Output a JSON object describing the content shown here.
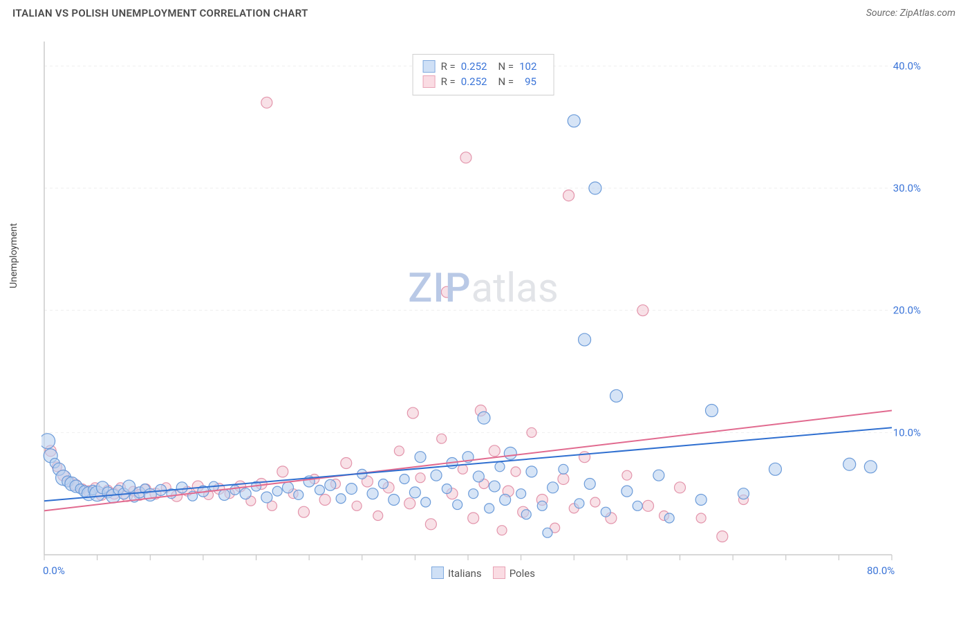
{
  "header": {
    "title": "ITALIAN VS POLISH UNEMPLOYMENT CORRELATION CHART",
    "source": "Source: ZipAtlas.com"
  },
  "chart": {
    "type": "scatter",
    "ylabel": "Unemployment",
    "watermark": {
      "part1": "ZIP",
      "part2": "atlas"
    },
    "xlim": [
      0,
      80
    ],
    "ylim": [
      0,
      42
    ],
    "xtick_minor_step": 5,
    "ytick_values": [
      10,
      20,
      30,
      40
    ],
    "ytick_labels": [
      "10.0%",
      "20.0%",
      "30.0%",
      "40.0%"
    ],
    "x_axis_start_label": "0.0%",
    "x_axis_end_label": "80.0%",
    "grid_color": "#eeeeee",
    "axis_color": "#cccccc",
    "tick_color": "#bdbdbd",
    "background_color": "#ffffff",
    "value_color": "#3a74d8",
    "series_a": {
      "name": "Italians",
      "marker_fill": "#b8d0ef",
      "marker_stroke": "#6b9bd9",
      "marker_fill_opacity": 0.58,
      "swatch_fill": "#cfe0f6",
      "swatch_border": "#7fa9de",
      "line_color": "#2f6fd0",
      "line_width": 2,
      "trend": {
        "x1": 0,
        "y1": 4.4,
        "x2": 80,
        "y2": 10.4
      },
      "stats": {
        "R": "0.252",
        "N": "102"
      },
      "points": [
        {
          "x": 0.3,
          "y": 9.3,
          "r": 11
        },
        {
          "x": 0.6,
          "y": 8.1,
          "r": 10
        },
        {
          "x": 1.0,
          "y": 7.5,
          "r": 7
        },
        {
          "x": 1.4,
          "y": 7.0,
          "r": 9
        },
        {
          "x": 1.8,
          "y": 6.3,
          "r": 11
        },
        {
          "x": 2.2,
          "y": 6.0,
          "r": 8
        },
        {
          "x": 2.6,
          "y": 5.8,
          "r": 10
        },
        {
          "x": 3.0,
          "y": 5.6,
          "r": 9
        },
        {
          "x": 3.4,
          "y": 5.4,
          "r": 7
        },
        {
          "x": 3.8,
          "y": 5.2,
          "r": 8
        },
        {
          "x": 4.2,
          "y": 5.0,
          "r": 10
        },
        {
          "x": 4.6,
          "y": 5.3,
          "r": 7
        },
        {
          "x": 5.0,
          "y": 5.0,
          "r": 11
        },
        {
          "x": 5.5,
          "y": 5.5,
          "r": 9
        },
        {
          "x": 6.0,
          "y": 5.1,
          "r": 8
        },
        {
          "x": 6.5,
          "y": 4.8,
          "r": 10
        },
        {
          "x": 7.0,
          "y": 5.3,
          "r": 7
        },
        {
          "x": 7.5,
          "y": 5.0,
          "r": 8
        },
        {
          "x": 8.0,
          "y": 5.6,
          "r": 9
        },
        {
          "x": 8.5,
          "y": 4.7,
          "r": 7
        },
        {
          "x": 9.0,
          "y": 5.1,
          "r": 8
        },
        {
          "x": 9.5,
          "y": 5.4,
          "r": 7
        },
        {
          "x": 10,
          "y": 4.9,
          "r": 9
        },
        {
          "x": 11,
          "y": 5.3,
          "r": 8
        },
        {
          "x": 12,
          "y": 5.0,
          "r": 7
        },
        {
          "x": 13,
          "y": 5.5,
          "r": 8
        },
        {
          "x": 14,
          "y": 4.8,
          "r": 7
        },
        {
          "x": 15,
          "y": 5.2,
          "r": 8
        },
        {
          "x": 16,
          "y": 5.6,
          "r": 7
        },
        {
          "x": 17,
          "y": 4.9,
          "r": 8
        },
        {
          "x": 18,
          "y": 5.3,
          "r": 7
        },
        {
          "x": 19,
          "y": 5.0,
          "r": 8
        },
        {
          "x": 20,
          "y": 5.6,
          "r": 7
        },
        {
          "x": 21,
          "y": 4.7,
          "r": 8
        },
        {
          "x": 22,
          "y": 5.2,
          "r": 7
        },
        {
          "x": 23,
          "y": 5.5,
          "r": 8
        },
        {
          "x": 24,
          "y": 4.9,
          "r": 7
        },
        {
          "x": 25,
          "y": 6.0,
          "r": 8
        },
        {
          "x": 26,
          "y": 5.3,
          "r": 7
        },
        {
          "x": 27,
          "y": 5.7,
          "r": 8
        },
        {
          "x": 28,
          "y": 4.6,
          "r": 7
        },
        {
          "x": 29,
          "y": 5.4,
          "r": 8
        },
        {
          "x": 30,
          "y": 6.6,
          "r": 7
        },
        {
          "x": 31,
          "y": 5.0,
          "r": 8
        },
        {
          "x": 32,
          "y": 5.8,
          "r": 7
        },
        {
          "x": 33,
          "y": 4.5,
          "r": 8
        },
        {
          "x": 34,
          "y": 6.2,
          "r": 7
        },
        {
          "x": 35,
          "y": 5.1,
          "r": 8
        },
        {
          "x": 35.5,
          "y": 8.0,
          "r": 8
        },
        {
          "x": 36,
          "y": 4.3,
          "r": 7
        },
        {
          "x": 37,
          "y": 6.5,
          "r": 8
        },
        {
          "x": 38,
          "y": 5.4,
          "r": 7
        },
        {
          "x": 38.5,
          "y": 7.5,
          "r": 8
        },
        {
          "x": 39,
          "y": 4.1,
          "r": 7
        },
        {
          "x": 40,
          "y": 8.0,
          "r": 8
        },
        {
          "x": 40.5,
          "y": 5.0,
          "r": 7
        },
        {
          "x": 41,
          "y": 6.4,
          "r": 8
        },
        {
          "x": 41.5,
          "y": 11.2,
          "r": 9
        },
        {
          "x": 42,
          "y": 3.8,
          "r": 7
        },
        {
          "x": 42.5,
          "y": 5.6,
          "r": 8
        },
        {
          "x": 43,
          "y": 7.2,
          "r": 7
        },
        {
          "x": 43.5,
          "y": 4.5,
          "r": 8
        },
        {
          "x": 44,
          "y": 8.3,
          "r": 9
        },
        {
          "x": 45,
          "y": 5.0,
          "r": 7
        },
        {
          "x": 45.5,
          "y": 3.3,
          "r": 7
        },
        {
          "x": 46,
          "y": 6.8,
          "r": 8
        },
        {
          "x": 47,
          "y": 4.0,
          "r": 7
        },
        {
          "x": 47.5,
          "y": 1.8,
          "r": 7
        },
        {
          "x": 48,
          "y": 5.5,
          "r": 8
        },
        {
          "x": 49,
          "y": 7.0,
          "r": 7
        },
        {
          "x": 50,
          "y": 35.5,
          "r": 9
        },
        {
          "x": 50.5,
          "y": 4.2,
          "r": 7
        },
        {
          "x": 51,
          "y": 17.6,
          "r": 9
        },
        {
          "x": 51.5,
          "y": 5.8,
          "r": 8
        },
        {
          "x": 52,
          "y": 30.0,
          "r": 9
        },
        {
          "x": 53,
          "y": 3.5,
          "r": 7
        },
        {
          "x": 54,
          "y": 13.0,
          "r": 9
        },
        {
          "x": 55,
          "y": 5.2,
          "r": 8
        },
        {
          "x": 56,
          "y": 4.0,
          "r": 7
        },
        {
          "x": 58,
          "y": 6.5,
          "r": 8
        },
        {
          "x": 59,
          "y": 3.0,
          "r": 7
        },
        {
          "x": 62,
          "y": 4.5,
          "r": 8
        },
        {
          "x": 63,
          "y": 11.8,
          "r": 9
        },
        {
          "x": 66,
          "y": 5.0,
          "r": 8
        },
        {
          "x": 69,
          "y": 7.0,
          "r": 9
        },
        {
          "x": 76,
          "y": 7.4,
          "r": 9
        },
        {
          "x": 78,
          "y": 7.2,
          "r": 9
        }
      ]
    },
    "series_b": {
      "name": "Poles",
      "marker_fill": "#f3c9d3",
      "marker_stroke": "#e394ab",
      "marker_fill_opacity": 0.55,
      "swatch_fill": "#fadce3",
      "swatch_border": "#e8a2b5",
      "line_color": "#e16a8f",
      "line_width": 2,
      "trend": {
        "x1": 0,
        "y1": 3.6,
        "x2": 80,
        "y2": 11.8
      },
      "stats": {
        "R": "0.252",
        "N": "95"
      },
      "points": [
        {
          "x": 0.6,
          "y": 8.5,
          "r": 8
        },
        {
          "x": 1.2,
          "y": 7.2,
          "r": 7
        },
        {
          "x": 1.8,
          "y": 6.5,
          "r": 8
        },
        {
          "x": 2.4,
          "y": 6.0,
          "r": 7
        },
        {
          "x": 3.0,
          "y": 5.7,
          "r": 8
        },
        {
          "x": 3.6,
          "y": 5.4,
          "r": 7
        },
        {
          "x": 4.2,
          "y": 5.2,
          "r": 8
        },
        {
          "x": 4.8,
          "y": 5.5,
          "r": 7
        },
        {
          "x": 5.4,
          "y": 4.9,
          "r": 8
        },
        {
          "x": 6.0,
          "y": 5.3,
          "r": 7
        },
        {
          "x": 6.6,
          "y": 5.0,
          "r": 8
        },
        {
          "x": 7.2,
          "y": 5.5,
          "r": 7
        },
        {
          "x": 7.8,
          "y": 4.8,
          "r": 8
        },
        {
          "x": 8.4,
          "y": 5.2,
          "r": 7
        },
        {
          "x": 9.0,
          "y": 4.9,
          "r": 8
        },
        {
          "x": 9.6,
          "y": 5.4,
          "r": 7
        },
        {
          "x": 10.5,
          "y": 5.0,
          "r": 8
        },
        {
          "x": 11.5,
          "y": 5.5,
          "r": 7
        },
        {
          "x": 12.5,
          "y": 4.8,
          "r": 8
        },
        {
          "x": 13.5,
          "y": 5.2,
          "r": 7
        },
        {
          "x": 14.5,
          "y": 5.6,
          "r": 8
        },
        {
          "x": 15.5,
          "y": 4.9,
          "r": 7
        },
        {
          "x": 16.5,
          "y": 5.4,
          "r": 8
        },
        {
          "x": 17.5,
          "y": 5.0,
          "r": 7
        },
        {
          "x": 18.5,
          "y": 5.6,
          "r": 8
        },
        {
          "x": 19.5,
          "y": 4.4,
          "r": 7
        },
        {
          "x": 20.5,
          "y": 5.8,
          "r": 8
        },
        {
          "x": 21,
          "y": 37.0,
          "r": 8
        },
        {
          "x": 21.5,
          "y": 4.0,
          "r": 7
        },
        {
          "x": 22.5,
          "y": 6.8,
          "r": 8
        },
        {
          "x": 23.5,
          "y": 5.0,
          "r": 7
        },
        {
          "x": 24.5,
          "y": 3.5,
          "r": 8
        },
        {
          "x": 25.5,
          "y": 6.2,
          "r": 7
        },
        {
          "x": 26.5,
          "y": 4.5,
          "r": 8
        },
        {
          "x": 27.5,
          "y": 5.8,
          "r": 7
        },
        {
          "x": 28.5,
          "y": 7.5,
          "r": 8
        },
        {
          "x": 29.5,
          "y": 4.0,
          "r": 7
        },
        {
          "x": 30.5,
          "y": 6.0,
          "r": 8
        },
        {
          "x": 31.5,
          "y": 3.2,
          "r": 7
        },
        {
          "x": 32.5,
          "y": 5.5,
          "r": 8
        },
        {
          "x": 33.5,
          "y": 8.5,
          "r": 7
        },
        {
          "x": 34.5,
          "y": 4.2,
          "r": 8
        },
        {
          "x": 34.8,
          "y": 11.6,
          "r": 8
        },
        {
          "x": 35.5,
          "y": 6.3,
          "r": 7
        },
        {
          "x": 36.5,
          "y": 2.5,
          "r": 8
        },
        {
          "x": 37.5,
          "y": 9.5,
          "r": 7
        },
        {
          "x": 38,
          "y": 21.5,
          "r": 8
        },
        {
          "x": 38.5,
          "y": 5.0,
          "r": 8
        },
        {
          "x": 39.5,
          "y": 7.0,
          "r": 7
        },
        {
          "x": 39.8,
          "y": 32.5,
          "r": 8
        },
        {
          "x": 40.5,
          "y": 3.0,
          "r": 8
        },
        {
          "x": 41.2,
          "y": 11.8,
          "r": 8
        },
        {
          "x": 41.5,
          "y": 5.8,
          "r": 7
        },
        {
          "x": 42.5,
          "y": 8.5,
          "r": 8
        },
        {
          "x": 43.2,
          "y": 2.0,
          "r": 7
        },
        {
          "x": 43.8,
          "y": 5.2,
          "r": 8
        },
        {
          "x": 44.5,
          "y": 6.8,
          "r": 7
        },
        {
          "x": 45.2,
          "y": 3.5,
          "r": 8
        },
        {
          "x": 46,
          "y": 10.0,
          "r": 7
        },
        {
          "x": 47,
          "y": 4.5,
          "r": 8
        },
        {
          "x": 48.2,
          "y": 2.2,
          "r": 7
        },
        {
          "x": 49,
          "y": 6.2,
          "r": 8
        },
        {
          "x": 49.5,
          "y": 29.4,
          "r": 8
        },
        {
          "x": 50,
          "y": 3.8,
          "r": 7
        },
        {
          "x": 51,
          "y": 8.0,
          "r": 8
        },
        {
          "x": 52,
          "y": 4.3,
          "r": 7
        },
        {
          "x": 53.5,
          "y": 3.0,
          "r": 8
        },
        {
          "x": 55,
          "y": 6.5,
          "r": 7
        },
        {
          "x": 56.5,
          "y": 20.0,
          "r": 8
        },
        {
          "x": 57,
          "y": 4.0,
          "r": 8
        },
        {
          "x": 58.5,
          "y": 3.2,
          "r": 7
        },
        {
          "x": 60,
          "y": 5.5,
          "r": 8
        },
        {
          "x": 62,
          "y": 3.0,
          "r": 7
        },
        {
          "x": 64,
          "y": 1.5,
          "r": 8
        },
        {
          "x": 66,
          "y": 4.5,
          "r": 7
        }
      ]
    },
    "bottom_legend": [
      {
        "label": "Italians",
        "fill": "#cfe0f6",
        "border": "#7fa9de"
      },
      {
        "label": "Poles",
        "fill": "#fadce3",
        "border": "#e8a2b5"
      }
    ]
  }
}
